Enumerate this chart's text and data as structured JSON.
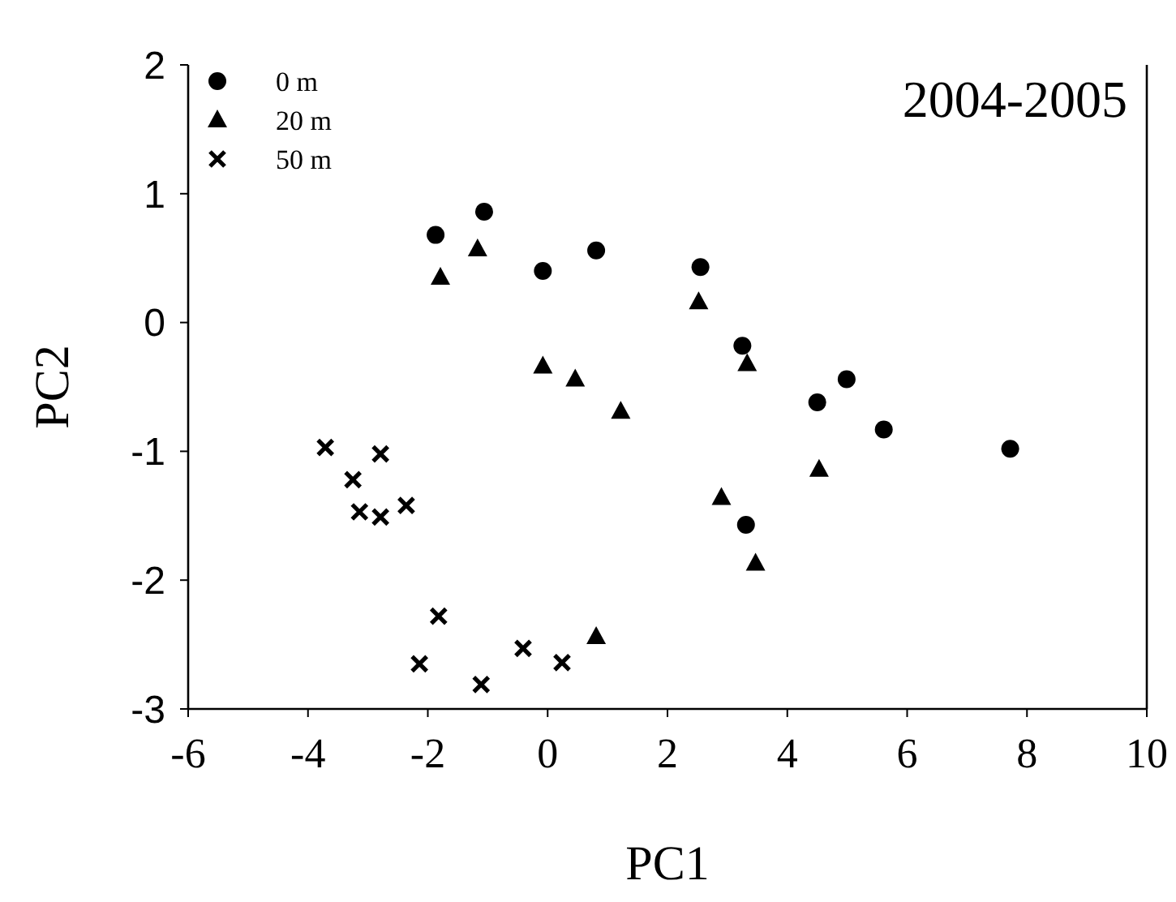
{
  "chart_data": {
    "type": "scatter",
    "title": "2004-2005",
    "xlabel": "PC1",
    "ylabel": "PC2",
    "xlim": [
      -6,
      10
    ],
    "xticks": [
      -6,
      -4,
      -2,
      0,
      2,
      4,
      6,
      8,
      10
    ],
    "ylim": [
      -3,
      2
    ],
    "yticks": [
      -3,
      -2,
      -1,
      0,
      1,
      2
    ],
    "grid": false,
    "legend": "top left",
    "series": [
      {
        "name": "0 m",
        "color": "#000000",
        "marker": "circle",
        "x": [
          -1.87,
          -1.06,
          -0.08,
          0.81,
          2.55,
          3.25,
          3.31,
          4.5,
          4.99,
          5.61,
          7.72
        ],
        "values": [
          0.68,
          0.86,
          0.4,
          0.56,
          0.43,
          -0.18,
          -1.57,
          -0.62,
          -0.44,
          -0.83,
          -0.98
        ]
      },
      {
        "name": "20 m",
        "color": "#000000",
        "marker": "triangle",
        "x": [
          -1.79,
          -1.17,
          -0.08,
          0.46,
          1.22,
          0.81,
          2.52,
          3.33,
          2.9,
          4.53,
          3.47
        ],
        "values": [
          0.35,
          0.57,
          -0.34,
          -0.44,
          -0.69,
          -2.44,
          0.16,
          -0.32,
          -1.36,
          -1.14,
          -1.87
        ]
      },
      {
        "name": "50 m",
        "color": "#000000",
        "marker": "cross",
        "x": [
          -3.71,
          -3.25,
          -2.79,
          -3.14,
          -2.79,
          -2.36,
          -1.82,
          -2.14,
          -1.11,
          -0.41,
          0.24
        ],
        "values": [
          -0.97,
          -1.22,
          -1.02,
          -1.47,
          -1.51,
          -1.42,
          -2.28,
          -2.65,
          -2.81,
          -2.53,
          -2.64
        ]
      }
    ]
  }
}
